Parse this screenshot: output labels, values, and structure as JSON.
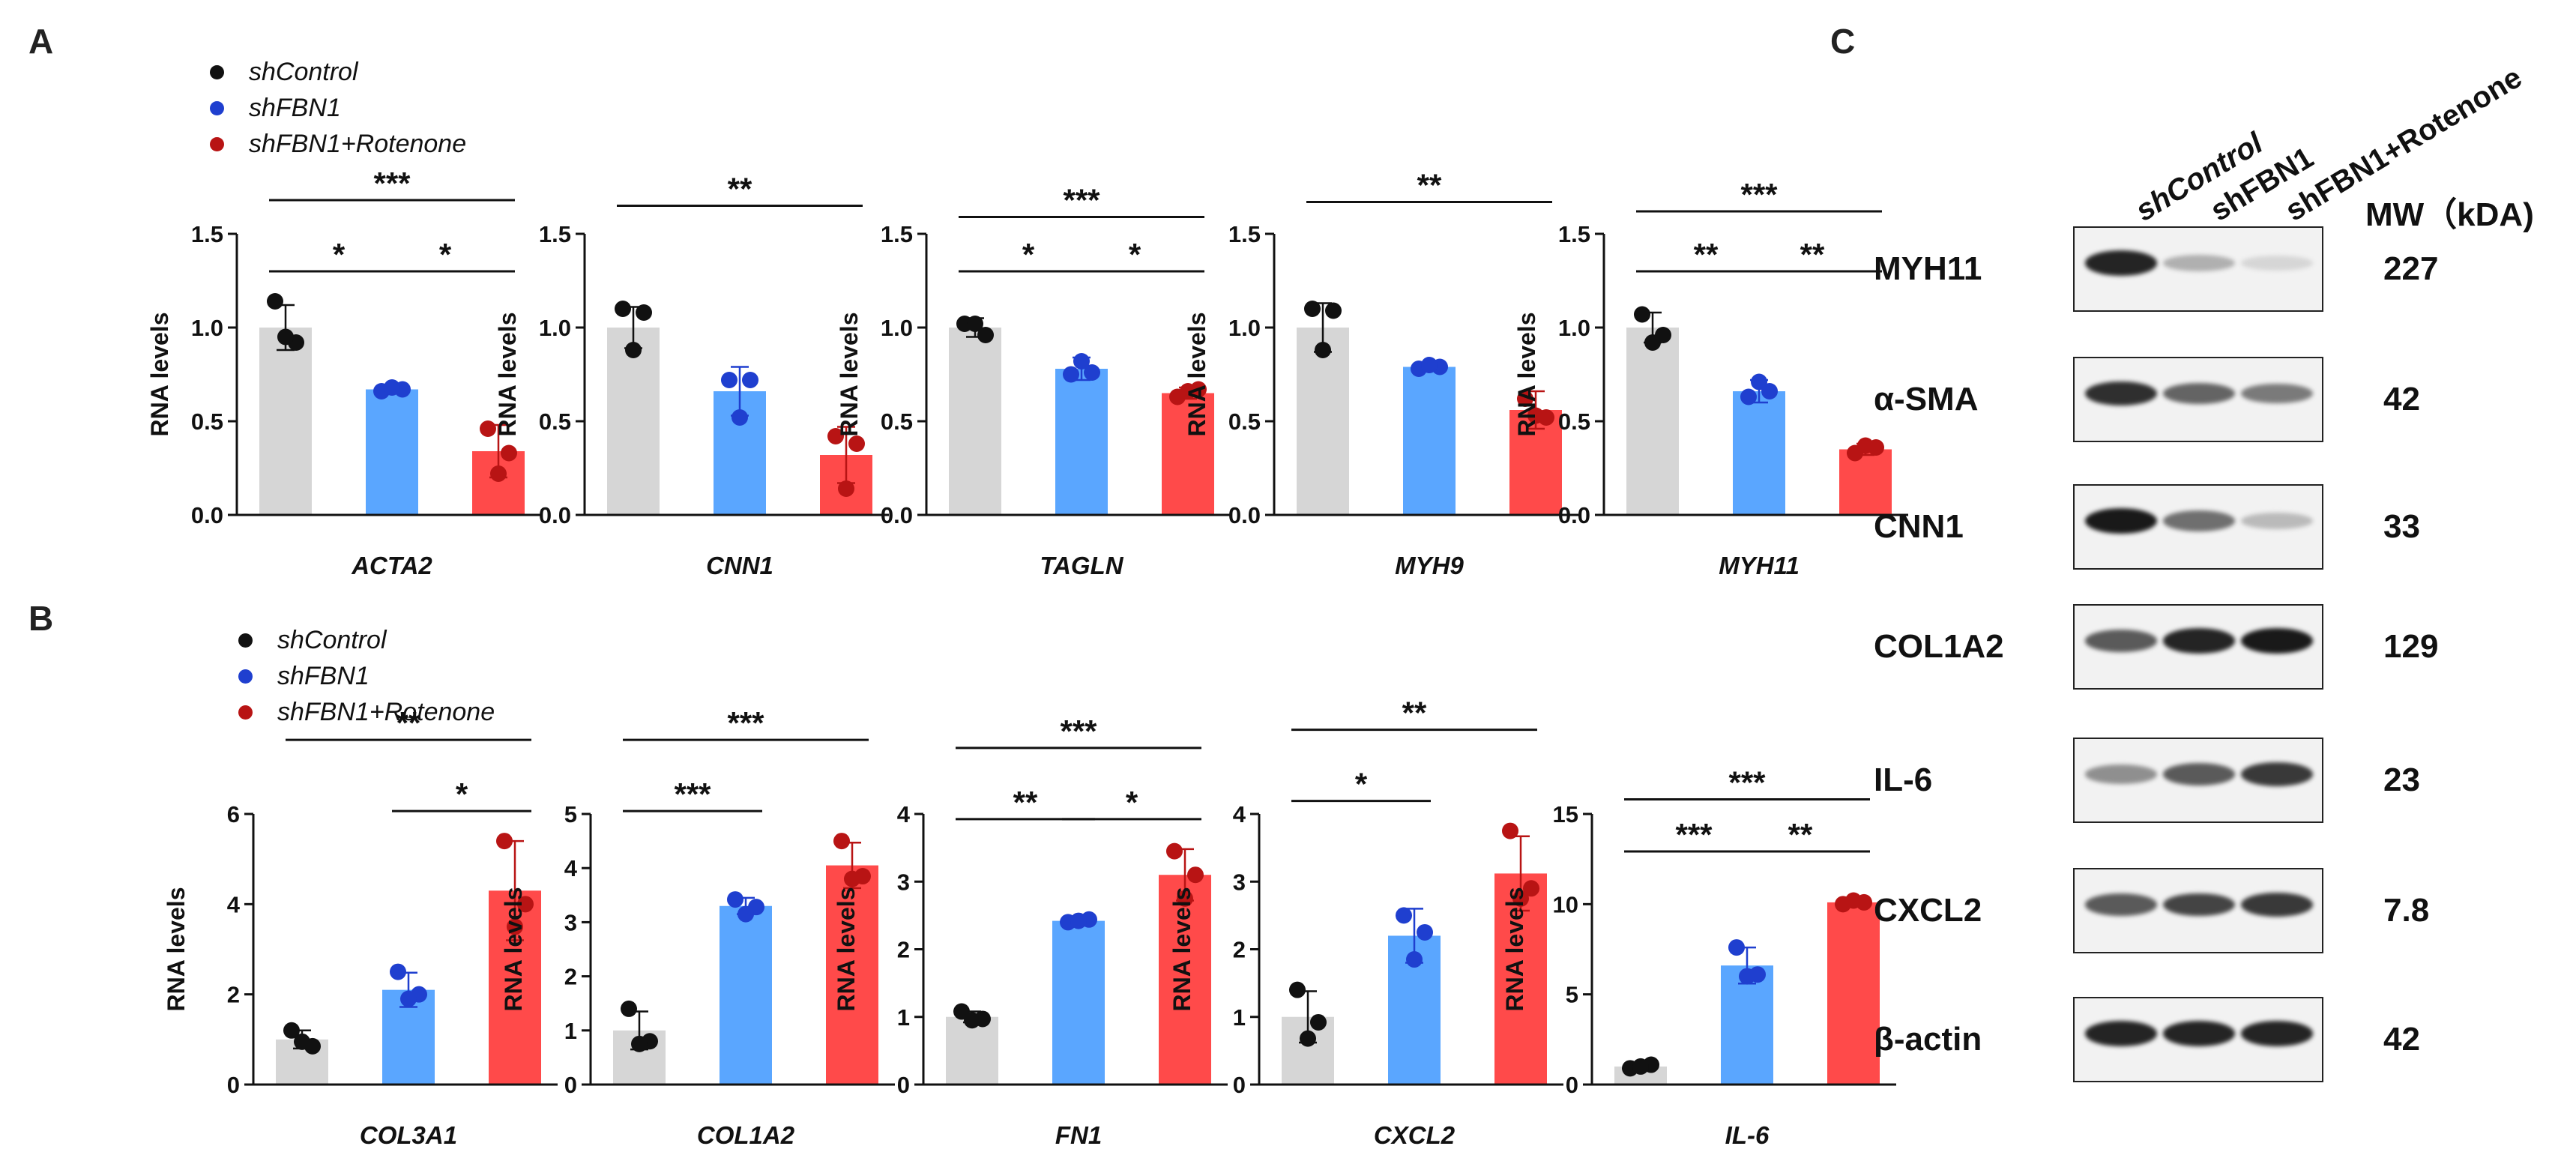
{
  "panels": {
    "A": "A",
    "B": "B",
    "C": "C"
  },
  "colors": {
    "shControl": "#d6d6d6",
    "shFBN1": "#5aa6ff",
    "shFBN1_Rotenone": "#ff4a4a",
    "dot_shControl": "#111111",
    "dot_shFBN1": "#1f3fcf",
    "dot_shFBN1_Rotenone": "#b81414"
  },
  "legend": {
    "A": [
      "shControl",
      "shFBN1",
      "shFBN1+Rotenone"
    ],
    "B": [
      "shControl",
      "shFBN1",
      "shFBN1+Rotenone"
    ]
  },
  "chart_data": [
    {
      "id": "ACTA2",
      "panel": "A",
      "type": "bar",
      "title": "ACTA2",
      "ylabel": "RNA levels",
      "categories": [
        "shControl",
        "shFBN1",
        "shFBN1+Rotenone"
      ],
      "values": [
        1.0,
        0.67,
        0.34
      ],
      "errors": [
        0.12,
        0.02,
        0.14
      ],
      "points": [
        [
          1.14,
          0.92,
          0.95
        ],
        [
          0.66,
          0.67,
          0.68
        ],
        [
          0.46,
          0.33,
          0.22
        ]
      ],
      "ylim": [
        0,
        1.5
      ],
      "ticks": [
        "0.0",
        "0.5",
        "1.0",
        "1.5"
      ],
      "significance": [
        {
          "from": 0,
          "to": 1,
          "label": "*"
        },
        {
          "from": 1,
          "to": 2,
          "label": "*"
        },
        {
          "from": 0,
          "to": 2,
          "label": "***"
        }
      ]
    },
    {
      "id": "CNN1",
      "panel": "A",
      "type": "bar",
      "title": "CNN1",
      "ylabel": "RNA levels",
      "categories": [
        "shControl",
        "shFBN1",
        "shFBN1+Rotenone"
      ],
      "values": [
        1.0,
        0.66,
        0.32
      ],
      "errors": [
        0.11,
        0.13,
        0.15
      ],
      "points": [
        [
          1.1,
          1.08,
          0.88
        ],
        [
          0.72,
          0.72,
          0.52
        ],
        [
          0.42,
          0.38,
          0.14
        ]
      ],
      "ylim": [
        0,
        1.5
      ],
      "ticks": [
        "0.0",
        "0.5",
        "1.0",
        "1.5"
      ],
      "significance": [
        {
          "from": 0,
          "to": 2,
          "label": "**"
        }
      ]
    },
    {
      "id": "TAGLN",
      "panel": "A",
      "type": "bar",
      "title": "TAGLN",
      "ylabel": "RNA levels",
      "categories": [
        "shControl",
        "shFBN1",
        "shFBN1+Rotenone"
      ],
      "values": [
        1.0,
        0.78,
        0.65
      ],
      "errors": [
        0.05,
        0.06,
        0.03
      ],
      "points": [
        [
          1.02,
          0.96,
          1.02
        ],
        [
          0.75,
          0.76,
          0.82
        ],
        [
          0.63,
          0.67,
          0.66
        ]
      ],
      "ylim": [
        0,
        1.5
      ],
      "ticks": [
        "0.0",
        "0.5",
        "1.0",
        "1.5"
      ],
      "significance": [
        {
          "from": 0,
          "to": 1,
          "label": "*"
        },
        {
          "from": 1,
          "to": 2,
          "label": "*"
        },
        {
          "from": 0,
          "to": 2,
          "label": "***"
        }
      ]
    },
    {
      "id": "MYH9",
      "panel": "A",
      "type": "bar",
      "title": "MYH9",
      "ylabel": "RNA levels",
      "categories": [
        "shControl",
        "shFBN1",
        "shFBN1+Rotenone"
      ],
      "values": [
        1.0,
        0.79,
        0.56
      ],
      "errors": [
        0.13,
        0.02,
        0.1
      ],
      "points": [
        [
          1.1,
          1.09,
          0.88
        ],
        [
          0.78,
          0.79,
          0.8
        ],
        [
          0.62,
          0.52,
          0.53
        ]
      ],
      "ylim": [
        0,
        1.5
      ],
      "ticks": [
        "0.0",
        "0.5",
        "1.0",
        "1.5"
      ],
      "significance": [
        {
          "from": 0,
          "to": 2,
          "label": "**"
        }
      ]
    },
    {
      "id": "MYH11",
      "panel": "A",
      "type": "bar",
      "title": "MYH11",
      "ylabel": "RNA levels",
      "categories": [
        "shControl",
        "shFBN1",
        "shFBN1+Rotenone"
      ],
      "values": [
        1.0,
        0.66,
        0.35
      ],
      "errors": [
        0.08,
        0.06,
        0.03
      ],
      "points": [
        [
          1.07,
          0.96,
          0.92
        ],
        [
          0.63,
          0.66,
          0.71
        ],
        [
          0.33,
          0.36,
          0.37
        ]
      ],
      "ylim": [
        0,
        1.5
      ],
      "ticks": [
        "0.0",
        "0.5",
        "1.0",
        "1.5"
      ],
      "significance": [
        {
          "from": 0,
          "to": 1,
          "label": "**"
        },
        {
          "from": 1,
          "to": 2,
          "label": "**"
        },
        {
          "from": 0,
          "to": 2,
          "label": "***"
        }
      ]
    },
    {
      "id": "COL3A1",
      "panel": "B",
      "type": "bar",
      "title": "COL3A1",
      "ylabel": "RNA levels",
      "categories": [
        "shControl",
        "shFBN1",
        "shFBN1+Rotenone"
      ],
      "values": [
        1.0,
        2.1,
        4.3
      ],
      "errors": [
        0.2,
        0.38,
        1.1
      ],
      "points": [
        [
          1.2,
          0.85,
          0.95
        ],
        [
          2.5,
          2.0,
          1.9
        ],
        [
          5.4,
          4.0,
          3.5
        ]
      ],
      "ylim": [
        0,
        6
      ],
      "ticks": [
        "0",
        "2",
        "4",
        "6"
      ],
      "significance": [
        {
          "from": 1,
          "to": 2,
          "label": "*"
        },
        {
          "from": 0,
          "to": 2,
          "label": "**"
        }
      ]
    },
    {
      "id": "COL1A2",
      "panel": "B",
      "type": "bar",
      "title": "COL1A2",
      "ylabel": "RNA levels",
      "categories": [
        "shControl",
        "shFBN1",
        "shFBN1+Rotenone"
      ],
      "values": [
        1.0,
        3.3,
        4.05
      ],
      "errors": [
        0.35,
        0.15,
        0.42
      ],
      "points": [
        [
          1.4,
          0.8,
          0.75
        ],
        [
          3.42,
          3.28,
          3.15
        ],
        [
          4.5,
          3.85,
          3.8
        ]
      ],
      "ylim": [
        0,
        5
      ],
      "ticks": [
        "0",
        "1",
        "2",
        "3",
        "4",
        "5"
      ],
      "significance": [
        {
          "from": 0,
          "to": 1,
          "label": "***"
        },
        {
          "from": 0,
          "to": 2,
          "label": "***"
        }
      ]
    },
    {
      "id": "FN1",
      "panel": "B",
      "type": "bar",
      "title": "FN1",
      "ylabel": "RNA levels",
      "categories": [
        "shControl",
        "shFBN1",
        "shFBN1+Rotenone"
      ],
      "values": [
        1.0,
        2.42,
        3.1
      ],
      "errors": [
        0.08,
        0.03,
        0.38
      ],
      "points": [
        [
          1.08,
          0.97,
          0.95
        ],
        [
          2.4,
          2.44,
          2.42
        ],
        [
          3.45,
          3.1,
          2.75
        ]
      ],
      "ylim": [
        0,
        4
      ],
      "ticks": [
        "0",
        "1",
        "2",
        "3",
        "4"
      ],
      "significance": [
        {
          "from": 0,
          "to": 1,
          "label": "**"
        },
        {
          "from": 1,
          "to": 2,
          "label": "*"
        },
        {
          "from": 0,
          "to": 2,
          "label": "***"
        }
      ]
    },
    {
      "id": "CXCL2",
      "panel": "B",
      "type": "bar",
      "title": "CXCL2",
      "ylabel": "RNA levels",
      "categories": [
        "shControl",
        "shFBN1",
        "shFBN1+Rotenone"
      ],
      "values": [
        1.0,
        2.2,
        3.12
      ],
      "errors": [
        0.38,
        0.4,
        0.55
      ],
      "points": [
        [
          1.4,
          0.92,
          0.68
        ],
        [
          2.5,
          2.25,
          1.85
        ],
        [
          3.75,
          2.9,
          2.75
        ]
      ],
      "ylim": [
        0,
        4
      ],
      "ticks": [
        "0",
        "1",
        "2",
        "3",
        "4"
      ],
      "significance": [
        {
          "from": 0,
          "to": 1,
          "label": "*"
        },
        {
          "from": 0,
          "to": 2,
          "label": "**"
        }
      ]
    },
    {
      "id": "IL-6",
      "panel": "B",
      "type": "bar",
      "title": "IL-6",
      "ylabel": "RNA levels",
      "categories": [
        "shControl",
        "shFBN1",
        "shFBN1+Rotenone"
      ],
      "values": [
        1.0,
        6.6,
        10.1
      ],
      "errors": [
        0.15,
        1.0,
        0.1
      ],
      "points": [
        [
          0.9,
          1.1,
          1.0
        ],
        [
          7.6,
          6.1,
          6.0
        ],
        [
          10.0,
          10.1,
          10.2
        ]
      ],
      "ylim": [
        0,
        15
      ],
      "ticks": [
        "0",
        "5",
        "10",
        "15"
      ],
      "significance": [
        {
          "from": 0,
          "to": 1,
          "label": "***"
        },
        {
          "from": 1,
          "to": 2,
          "label": "**"
        },
        {
          "from": 0,
          "to": 2,
          "label": "***"
        }
      ]
    }
  ],
  "western_blot": {
    "lanes": [
      "shControl",
      "shFBN1",
      "shFBN1+Rotenone"
    ],
    "mw_header": "MW（kDA)",
    "proteins": [
      {
        "name": "MYH11",
        "mw": "227",
        "intensity": [
          0.95,
          0.3,
          0.12
        ]
      },
      {
        "name": "α-SMA",
        "mw": "42",
        "intensity": [
          0.9,
          0.65,
          0.55
        ]
      },
      {
        "name": "CNN1",
        "mw": "33",
        "intensity": [
          1.0,
          0.6,
          0.25
        ]
      },
      {
        "name": "COL1A2",
        "mw": "129",
        "intensity": [
          0.7,
          0.95,
          1.0
        ]
      },
      {
        "name": "IL-6",
        "mw": "23",
        "intensity": [
          0.45,
          0.7,
          0.85
        ]
      },
      {
        "name": "CXCL2",
        "mw": "7.8",
        "intensity": [
          0.7,
          0.8,
          0.85
        ]
      },
      {
        "name": "β-actin",
        "mw": "42",
        "intensity": [
          0.95,
          0.95,
          0.95
        ]
      }
    ]
  }
}
